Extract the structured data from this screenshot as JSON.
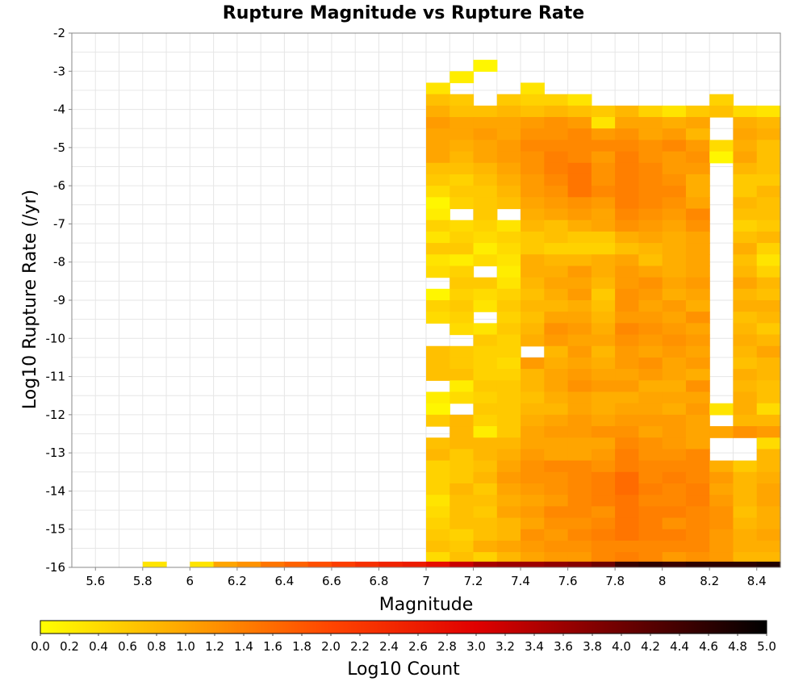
{
  "chart_data": {
    "type": "heatmap",
    "title": "Rupture Magnitude vs Rupture Rate",
    "xlabel": "Magnitude",
    "ylabel": "Log10 Rupture Rate (/yr)",
    "xlim": [
      5.5,
      8.5
    ],
    "ylim": [
      -16,
      -2
    ],
    "x_ticks": [
      "5.6",
      "5.8",
      "6",
      "6.2",
      "6.4",
      "6.6",
      "6.8",
      "7",
      "7.2",
      "7.4",
      "7.6",
      "7.8",
      "8",
      "8.2",
      "8.4"
    ],
    "y_ticks": [
      "-2",
      "-3",
      "-4",
      "-5",
      "-6",
      "-7",
      "-8",
      "-9",
      "-10",
      "-11",
      "-12",
      "-13",
      "-14",
      "-15",
      "-16"
    ],
    "grid": true,
    "x_bin_width": 0.1,
    "y_bin_height": 0.3,
    "x_bin_centers": [
      7.05,
      7.15,
      7.25,
      7.35,
      7.45,
      7.55,
      7.65,
      7.75,
      7.85,
      7.95,
      8.05,
      8.15,
      8.25,
      8.35,
      8.45
    ],
    "y_bin_centers_top_to_bottom": [
      -2.85,
      -3.15,
      -3.45,
      -3.75,
      -4.05,
      -4.35,
      -4.65,
      -4.95,
      -5.25,
      -5.55,
      -5.85,
      -6.15,
      -6.45,
      -6.75,
      -7.05,
      -7.35,
      -7.65,
      -7.95,
      -8.25,
      -8.55,
      -8.85,
      -9.15,
      -9.45,
      -9.75,
      -10.05,
      -10.35,
      -10.65,
      -10.95,
      -11.25,
      -11.55,
      -11.85,
      -12.15,
      -12.45,
      -12.75,
      -13.05,
      -13.35,
      -13.65,
      -13.95,
      -14.25,
      -14.55,
      -14.85,
      -15.15,
      -15.45,
      -15.75
    ],
    "log10_count_grid": [
      [
        null,
        null,
        0.1,
        null,
        null,
        null,
        null,
        null,
        null,
        null,
        null,
        null,
        null,
        null,
        null
      ],
      [
        null,
        0.2,
        null,
        null,
        null,
        null,
        null,
        null,
        null,
        null,
        null,
        null,
        null,
        null,
        null
      ],
      [
        0.3,
        null,
        null,
        null,
        0.3,
        null,
        null,
        null,
        null,
        null,
        null,
        null,
        null,
        null,
        null
      ],
      [
        0.7,
        0.6,
        null,
        0.6,
        0.5,
        0.5,
        0.3,
        null,
        null,
        null,
        null,
        null,
        0.5,
        null,
        null
      ],
      [
        0.9,
        0.7,
        0.7,
        0.8,
        0.7,
        0.8,
        0.7,
        0.6,
        0.8,
        0.5,
        0.3,
        0.6,
        0.7,
        0.4,
        0.3
      ],
      [
        1.1,
        1.0,
        1.0,
        1.0,
        1.1,
        1.2,
        1.1,
        0.3,
        1.0,
        1.0,
        0.9,
        1.0,
        null,
        0.9,
        0.8
      ],
      [
        1.0,
        1.0,
        1.1,
        1.0,
        1.2,
        1.2,
        1.3,
        1.1,
        1.2,
        1.0,
        1.1,
        0.8,
        null,
        1.0,
        0.9
      ],
      [
        1.0,
        0.9,
        1.0,
        1.1,
        1.3,
        1.3,
        1.3,
        1.3,
        1.3,
        1.2,
        1.3,
        1.1,
        0.4,
        0.9,
        0.7
      ],
      [
        1.0,
        0.8,
        1.0,
        1.1,
        1.2,
        1.4,
        1.3,
        1.1,
        1.4,
        1.2,
        1.1,
        1.2,
        0.1,
        1.0,
        0.7
      ],
      [
        0.7,
        0.7,
        0.8,
        1.0,
        1.2,
        1.4,
        1.5,
        1.2,
        1.4,
        1.3,
        1.1,
        1.1,
        null,
        0.8,
        0.7
      ],
      [
        0.6,
        0.5,
        0.7,
        0.9,
        1.1,
        1.3,
        1.5,
        1.2,
        1.4,
        1.3,
        1.2,
        0.9,
        null,
        0.6,
        0.6
      ],
      [
        0.4,
        0.6,
        0.6,
        0.8,
        1.1,
        1.2,
        1.5,
        1.3,
        1.4,
        1.3,
        1.3,
        0.9,
        null,
        0.6,
        0.8
      ],
      [
        0.1,
        0.5,
        0.6,
        0.7,
        1.0,
        1.1,
        1.2,
        1.1,
        1.4,
        1.3,
        1.2,
        1.0,
        null,
        0.8,
        0.7
      ],
      [
        0.2,
        null,
        0.6,
        null,
        0.9,
        1.0,
        1.1,
        1.0,
        1.3,
        1.2,
        1.1,
        1.3,
        null,
        0.7,
        0.7
      ],
      [
        0.5,
        0.4,
        0.5,
        0.3,
        0.8,
        0.7,
        0.9,
        1.0,
        1.2,
        1.1,
        1.0,
        1.2,
        null,
        0.5,
        0.6
      ],
      [
        0.3,
        0.5,
        0.4,
        0.5,
        0.6,
        0.7,
        0.6,
        0.6,
        0.9,
        1.0,
        0.9,
        1.0,
        null,
        0.7,
        0.8
      ],
      [
        0.6,
        0.6,
        0.2,
        0.4,
        0.6,
        0.5,
        0.5,
        0.5,
        0.7,
        0.8,
        0.9,
        1.0,
        null,
        0.9,
        0.5
      ],
      [
        0.3,
        0.2,
        0.4,
        0.3,
        0.9,
        0.8,
        0.8,
        0.9,
        1.0,
        0.7,
        0.9,
        1.0,
        null,
        0.7,
        0.3
      ],
      [
        0.4,
        0.5,
        null,
        0.2,
        0.9,
        0.9,
        1.1,
        0.9,
        1.1,
        1.0,
        0.9,
        1.0,
        null,
        0.8,
        0.5
      ],
      [
        null,
        0.6,
        0.6,
        0.3,
        0.8,
        1.0,
        1.0,
        0.8,
        1.1,
        1.2,
        1.0,
        1.1,
        null,
        1.0,
        0.8
      ],
      [
        0.1,
        0.5,
        0.4,
        0.5,
        0.7,
        0.9,
        1.1,
        0.6,
        1.2,
        1.1,
        0.9,
        1.0,
        null,
        0.8,
        0.7
      ],
      [
        0.5,
        0.6,
        0.3,
        0.6,
        0.8,
        0.8,
        0.9,
        0.7,
        1.2,
        1.0,
        1.1,
        0.9,
        null,
        0.9,
        0.9
      ],
      [
        0.4,
        0.5,
        null,
        0.5,
        0.7,
        1.0,
        1.0,
        0.8,
        1.1,
        1.1,
        1.0,
        1.2,
        null,
        0.7,
        0.8
      ],
      [
        null,
        0.4,
        0.3,
        0.6,
        0.8,
        1.2,
        1.1,
        0.9,
        1.3,
        1.2,
        1.1,
        1.0,
        null,
        0.8,
        0.6
      ],
      [
        null,
        null,
        0.6,
        0.5,
        0.9,
        1.1,
        1.0,
        1.0,
        1.2,
        1.1,
        1.2,
        1.1,
        null,
        0.9,
        0.8
      ],
      [
        0.7,
        0.6,
        0.5,
        0.5,
        null,
        0.8,
        1.1,
        0.8,
        1.1,
        1.0,
        1.1,
        1.0,
        null,
        0.8,
        1.0
      ],
      [
        0.7,
        0.6,
        0.5,
        0.4,
        1.1,
        0.9,
        1.0,
        0.9,
        1.1,
        1.2,
        1.0,
        1.1,
        null,
        0.7,
        0.8
      ],
      [
        0.7,
        0.7,
        0.5,
        0.5,
        0.8,
        1.0,
        1.1,
        1.0,
        1.0,
        1.1,
        1.0,
        0.9,
        null,
        0.9,
        0.8
      ],
      [
        null,
        0.2,
        0.6,
        0.6,
        0.8,
        1.0,
        1.2,
        1.1,
        1.1,
        0.9,
        0.9,
        1.2,
        null,
        0.8,
        0.7
      ],
      [
        0.2,
        0.4,
        0.5,
        0.6,
        0.7,
        0.9,
        1.0,
        0.9,
        0.9,
        1.0,
        1.0,
        1.0,
        null,
        0.9,
        0.7
      ],
      [
        0.1,
        null,
        0.6,
        0.6,
        0.8,
        0.8,
        1.0,
        0.9,
        1.0,
        1.0,
        0.9,
        1.1,
        0.3,
        0.9,
        0.4
      ],
      [
        0.6,
        0.8,
        0.5,
        0.6,
        0.9,
        1.0,
        1.1,
        1.0,
        1.1,
        1.1,
        1.1,
        1.0,
        null,
        0.8,
        0.8
      ],
      [
        null,
        0.8,
        0.2,
        0.6,
        1.0,
        1.1,
        1.1,
        1.2,
        1.2,
        1.0,
        1.1,
        1.0,
        1.0,
        1.2,
        1.1
      ],
      [
        0.7,
        0.8,
        0.8,
        0.8,
        1.0,
        1.0,
        1.0,
        1.0,
        1.3,
        1.2,
        1.1,
        1.0,
        null,
        null,
        0.4
      ],
      [
        0.8,
        0.6,
        0.8,
        0.9,
        1.1,
        1.0,
        1.0,
        1.1,
        1.4,
        1.2,
        1.2,
        1.3,
        null,
        null,
        0.8
      ],
      [
        0.5,
        0.6,
        0.7,
        1.0,
        1.2,
        1.3,
        1.3,
        1.2,
        1.4,
        1.3,
        1.3,
        1.3,
        0.9,
        0.6,
        0.8
      ],
      [
        0.5,
        0.6,
        0.8,
        1.1,
        1.2,
        1.2,
        1.3,
        1.4,
        1.6,
        1.3,
        1.4,
        1.3,
        1.1,
        0.8,
        0.9
      ],
      [
        0.5,
        0.8,
        0.6,
        1.0,
        1.1,
        1.2,
        1.3,
        1.4,
        1.6,
        1.4,
        1.3,
        1.4,
        1.0,
        0.8,
        1.0
      ],
      [
        0.3,
        0.7,
        0.7,
        0.9,
        1.0,
        1.1,
        1.3,
        1.4,
        1.5,
        1.3,
        1.3,
        1.4,
        1.1,
        0.8,
        1.0
      ],
      [
        0.4,
        0.7,
        0.6,
        1.0,
        1.1,
        1.3,
        1.3,
        1.2,
        1.5,
        1.4,
        1.4,
        1.3,
        1.2,
        0.7,
        0.9
      ],
      [
        0.5,
        0.7,
        0.7,
        0.8,
        1.0,
        1.2,
        1.2,
        1.3,
        1.5,
        1.4,
        1.2,
        1.3,
        1.2,
        0.8,
        0.9
      ],
      [
        0.6,
        0.5,
        0.7,
        0.8,
        1.2,
        1.1,
        1.3,
        1.4,
        1.5,
        1.4,
        1.4,
        1.3,
        1.1,
        0.9,
        1.0
      ],
      [
        0.7,
        0.6,
        0.9,
        1.0,
        1.1,
        1.2,
        1.2,
        1.3,
        1.3,
        1.3,
        1.3,
        1.3,
        1.1,
        0.9,
        0.9
      ],
      [
        0.4,
        0.7,
        0.5,
        0.8,
        1.0,
        1.1,
        1.1,
        1.3,
        1.4,
        1.3,
        1.1,
        1.2,
        1.1,
        0.8,
        0.8
      ]
    ],
    "bottom_row": {
      "y_center": -15.95,
      "x": [
        5.85,
        6.05,
        6.15,
        6.25,
        6.35,
        6.45,
        6.55,
        6.65,
        6.75,
        6.85,
        6.95,
        7.05,
        7.15,
        7.25,
        7.35,
        7.45,
        7.55,
        7.65,
        7.75,
        7.85,
        7.95,
        8.05,
        8.15,
        8.25,
        8.35,
        8.45
      ],
      "log10_count": [
        0.3,
        0.3,
        1.0,
        1.2,
        1.5,
        1.7,
        1.9,
        2.1,
        2.3,
        2.5,
        2.6,
        2.8,
        3.2,
        3.5,
        3.6,
        3.6,
        3.7,
        3.8,
        4.0,
        4.5,
        4.6,
        4.5,
        4.6,
        4.6,
        4.6,
        4.7
      ]
    },
    "colorbar": {
      "label": "Log10 Count",
      "range": [
        0.0,
        5.0
      ],
      "ticks": [
        "0.0",
        "0.2",
        "0.4",
        "0.6",
        "0.8",
        "1.0",
        "1.2",
        "1.4",
        "1.6",
        "1.8",
        "2.0",
        "2.2",
        "2.4",
        "2.6",
        "2.8",
        "3.0",
        "3.2",
        "3.4",
        "3.6",
        "3.8",
        "4.0",
        "4.2",
        "4.4",
        "4.6",
        "4.8",
        "5.0"
      ],
      "colormap": [
        "#ffff00",
        "#ffa500",
        "#ff4500",
        "#e00000",
        "#6e0000",
        "#000000"
      ]
    }
  }
}
